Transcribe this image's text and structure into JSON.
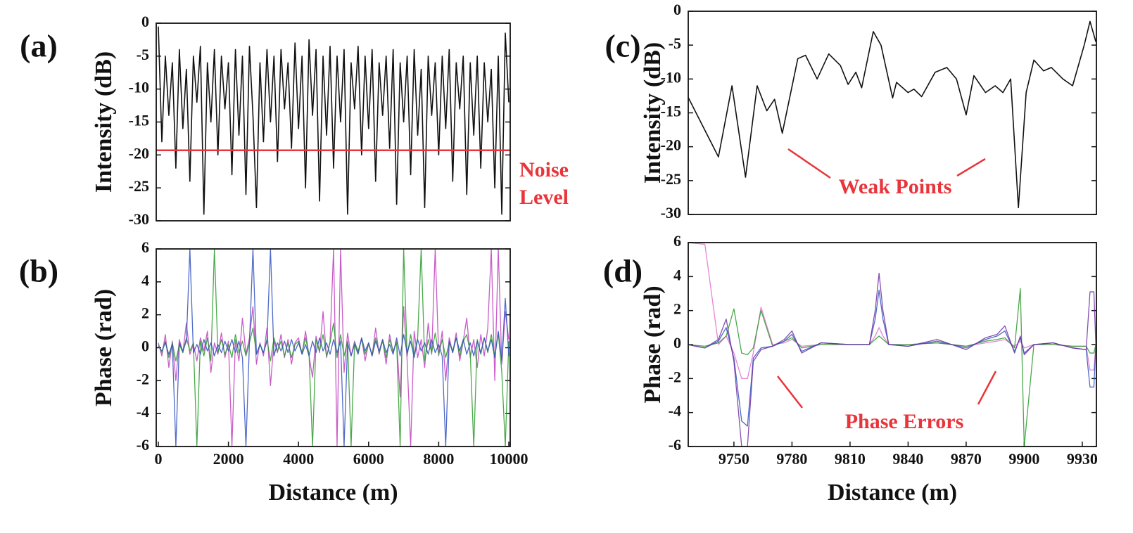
{
  "chart_data": [
    {
      "type": "line",
      "label": "(a)",
      "y_title": "Intensity (dB)",
      "x": [
        0,
        100,
        200,
        300,
        400,
        500,
        600,
        700,
        800,
        900,
        1000,
        1100,
        1200,
        1300,
        1400,
        1500,
        1600,
        1700,
        1800,
        1900,
        2000,
        2100,
        2200,
        2300,
        2400,
        2500,
        2600,
        2700,
        2800,
        2900,
        3000,
        3100,
        3200,
        3300,
        3400,
        3500,
        3600,
        3700,
        3800,
        3900,
        4000,
        4100,
        4200,
        4300,
        4400,
        4500,
        4600,
        4700,
        4800,
        4900,
        5000,
        5100,
        5200,
        5300,
        5400,
        5500,
        5600,
        5700,
        5800,
        5900,
        6000,
        6100,
        6200,
        6300,
        6400,
        6500,
        6600,
        6700,
        6800,
        6900,
        7000,
        7100,
        7200,
        7300,
        7400,
        7500,
        7600,
        7700,
        7800,
        7900,
        8000,
        8100,
        8200,
        8300,
        8400,
        8500,
        8600,
        8700,
        8800,
        8900,
        9000,
        9100,
        9200,
        9300,
        9400,
        9500,
        9600,
        9700,
        9800,
        9900,
        10000
      ],
      "values": [
        -0.5,
        -18,
        -5,
        -14,
        -6,
        -22,
        -4,
        -16,
        -7,
        -24,
        -5,
        -12,
        -3.5,
        -29,
        -6,
        -15,
        -4,
        -20,
        -5,
        -13,
        -6,
        -23,
        -4,
        -17,
        -5,
        -26,
        -3.5,
        -14,
        -28,
        -6,
        -18,
        -4,
        -15,
        -5,
        -21,
        -4,
        -13,
        -6,
        -19,
        -3,
        -16,
        -5,
        -25,
        -2.5,
        -14,
        -4,
        -27,
        -5,
        -17,
        -3.5,
        -22,
        -5,
        -15,
        -4,
        -29,
        -6,
        -13,
        -3.5,
        -20,
        -5,
        -16,
        -4,
        -24,
        -6,
        -14,
        -5,
        -19,
        -4,
        -27.5,
        -6,
        -15,
        -5,
        -23,
        -4,
        -17,
        -7,
        -28,
        -5,
        -14,
        -6,
        -20,
        -5,
        -16,
        -4,
        -24,
        -6,
        -13,
        -5,
        -26,
        -6,
        -17,
        -5,
        -22,
        -6,
        -15,
        -7,
        -25,
        -5,
        -29,
        -1.5,
        -12
      ],
      "color": "#111111",
      "xlim": [
        -60,
        10040
      ],
      "ylim": [
        -30,
        0
      ],
      "yticks": [
        0,
        -5,
        -10,
        -15,
        -20,
        -25,
        -30
      ],
      "noise_level": -19.3,
      "noise_color": "#e8343a",
      "annotation": [
        "Noise",
        "Level"
      ]
    },
    {
      "type": "line",
      "label": "(b)",
      "y_title": "Phase (rad)",
      "x_title": "Distance (m)",
      "x": [
        0,
        100,
        200,
        300,
        400,
        500,
        600,
        700,
        800,
        900,
        1000,
        1100,
        1200,
        1300,
        1400,
        1500,
        1600,
        1700,
        1800,
        1900,
        2000,
        2100,
        2200,
        2300,
        2400,
        2500,
        2600,
        2700,
        2800,
        2900,
        3000,
        3100,
        3200,
        3300,
        3400,
        3500,
        3600,
        3700,
        3800,
        3900,
        4000,
        4100,
        4200,
        4300,
        4400,
        4500,
        4600,
        4700,
        4800,
        4900,
        5000,
        5100,
        5200,
        5300,
        5400,
        5500,
        5600,
        5700,
        5800,
        5900,
        6000,
        6100,
        6200,
        6300,
        6400,
        6500,
        6600,
        6700,
        6800,
        6900,
        7000,
        7100,
        7200,
        7300,
        7400,
        7500,
        7600,
        7700,
        7800,
        7900,
        8000,
        8100,
        8200,
        8300,
        8400,
        8500,
        8600,
        8700,
        8800,
        8900,
        9000,
        9100,
        9200,
        9300,
        9400,
        9500,
        9600,
        9700,
        9800,
        9900,
        10000
      ],
      "series": [
        {
          "color": "#c040c0",
          "values": [
            0.3,
            -0.5,
            0.8,
            -1.2,
            0.4,
            -2,
            0.5,
            -0.3,
            1.5,
            -0.4,
            0.2,
            -0.8,
            0.6,
            -0.2,
            1,
            -1.5,
            0.3,
            -0.4,
            0.9,
            -0.6,
            0.4,
            -6,
            0.5,
            -0.8,
            1.8,
            -0.4,
            0.6,
            2.5,
            -1,
            0.3,
            -0.5,
            1.2,
            -2.3,
            0.4,
            -0.3,
            0.8,
            -0.6,
            0.5,
            -1,
            0.3,
            0.6,
            -0.4,
            1,
            -0.5,
            -1.8,
            0.7,
            -0.3,
            2.2,
            -0.6,
            0.4,
            6,
            -6,
            6,
            -1.5,
            0.9,
            -0.5,
            0.4,
            -0.3,
            0.6,
            -0.8,
            0.3,
            -0.5,
            1.2,
            -0.4,
            0.5,
            -1,
            0.8,
            -0.3,
            0.4,
            -3,
            2.5,
            -0.8,
            -6,
            1,
            -0.6,
            0.5,
            -1.2,
            1.5,
            -0.4,
            6,
            -0.5,
            1,
            -2,
            0.6,
            -0.3,
            0.9,
            -0.8,
            0.4,
            1.8,
            -0.6,
            0.5,
            -1.2,
            0.8,
            -0.5,
            1.2,
            6,
            -2,
            6,
            -1,
            2.2,
            0.5
          ]
        },
        {
          "color": "#2a9a2a",
          "values": [
            0.2,
            -0.3,
            0.4,
            -0.6,
            0.3,
            -0.8,
            0.2,
            -0.3,
            0.6,
            -0.2,
            0.3,
            -6,
            0.4,
            -0.5,
            0.6,
            -0.8,
            6,
            -0.3,
            0.5,
            -0.4,
            0.2,
            -0.6,
            0.8,
            -0.3,
            0.4,
            -0.5,
            0.3,
            1.2,
            -0.4,
            0.2,
            -0.3,
            0.5,
            -0.8,
            0.6,
            -0.2,
            0.4,
            -0.5,
            0.3,
            -0.6,
            0.2,
            0.4,
            -0.3,
            0.6,
            -0.4,
            -6,
            0.5,
            -0.2,
            0.8,
            -0.5,
            0.3,
            1.5,
            -0.6,
            0.8,
            -0.5,
            0.4,
            -6,
            0.3,
            -0.2,
            0.5,
            -0.4,
            0.2,
            -0.4,
            0.6,
            -0.3,
            0.4,
            -0.6,
            0.5,
            -0.2,
            0.3,
            -6,
            6,
            -0.5,
            0.8,
            -0.4,
            0.6,
            6,
            -0.8,
            0.5,
            -0.3,
            0.9,
            -0.4,
            0.5,
            -0.6,
            0.3,
            -0.2,
            0.6,
            -0.5,
            0.4,
            0.8,
            -0.3,
            -6,
            0.5,
            -0.4,
            0.6,
            -0.3,
            0.8,
            -0.5,
            0.9,
            -1.5,
            -6,
            0.4
          ]
        },
        {
          "color": "#3050c0",
          "values": [
            0.1,
            -0.2,
            0.3,
            -0.4,
            0.2,
            -6,
            0.3,
            -0.2,
            0.4,
            6,
            -0.3,
            0.2,
            -0.4,
            0.5,
            -0.2,
            0.3,
            -0.5,
            0.2,
            -0.3,
            0.4,
            -0.2,
            0.5,
            -0.3,
            0.4,
            -0.6,
            -6,
            0.3,
            6,
            -0.4,
            0.2,
            -0.3,
            0.4,
            6,
            -0.5,
            0.3,
            -0.2,
            0.4,
            -0.3,
            0.5,
            -0.2,
            0.3,
            -0.4,
            0.2,
            -0.5,
            0.4,
            -0.3,
            0.6,
            -0.2,
            0.3,
            -0.4,
            0.5,
            -0.3,
            0.4,
            -6,
            0.3,
            -0.5,
            0.2,
            -0.4,
            0.6,
            -0.2,
            0.3,
            -0.5,
            0.4,
            -0.2,
            0.5,
            -0.3,
            0.2,
            -0.4,
            0.6,
            -0.5,
            0.8,
            -0.3,
            0.4,
            -0.6,
            0.5,
            -0.2,
            0.3,
            -0.4,
            0.5,
            -0.3,
            0.2,
            -0.5,
            -6,
            0.4,
            -0.3,
            0.6,
            -0.2,
            0.5,
            -0.4,
            0.3,
            -0.5,
            0.4,
            -0.3,
            0.6,
            -0.2,
            0.5,
            -0.6,
            1,
            -0.8,
            3,
            -0.5
          ]
        }
      ],
      "xlim": [
        -60,
        10040
      ],
      "xticks": [
        0,
        2000,
        4000,
        6000,
        8000,
        10000
      ],
      "ylim": [
        -6,
        6
      ],
      "yticks": [
        6,
        4,
        2,
        0,
        -2,
        -4,
        -6
      ]
    },
    {
      "type": "line",
      "label": "(c)",
      "y_title": "Intensity (dB)",
      "x": [
        9726,
        9742,
        9749,
        9756,
        9762,
        9767,
        9771,
        9775,
        9783,
        9787,
        9793,
        9799,
        9805,
        9809,
        9813,
        9816,
        9822,
        9826,
        9832,
        9834,
        9840,
        9843,
        9847,
        9854,
        9860,
        9865,
        9870,
        9874,
        9880,
        9885,
        9889,
        9893,
        9897,
        9901,
        9905,
        9910,
        9914,
        9920,
        9925,
        9931,
        9934,
        9937
      ],
      "values": [
        -12.5,
        -21.5,
        -11,
        -24.5,
        -11,
        -14.7,
        -13,
        -18,
        -7,
        -6.5,
        -10,
        -6.3,
        -8,
        -10.8,
        -9,
        -11.3,
        -3,
        -5,
        -12.8,
        -10.5,
        -12,
        -11.5,
        -12.6,
        -9,
        -8.3,
        -10,
        -15.3,
        -9.5,
        -12,
        -11,
        -12,
        -10,
        -29,
        -12,
        -7.2,
        -8.8,
        -8.3,
        -10,
        -11,
        -5,
        -1.5,
        -4.5
      ],
      "color": "#111111",
      "xlim": [
        9726.4,
        9937.3
      ],
      "ylim": [
        -30,
        0
      ],
      "yticks": [
        0,
        -5,
        -10,
        -15,
        -20,
        -25,
        -30
      ],
      "annotation": "Weak Points"
    },
    {
      "type": "line",
      "label": "(d)",
      "y_title": "Phase (rad)",
      "x_title": "Distance (m)",
      "x": [
        9726,
        9735,
        9742,
        9746,
        9750,
        9754,
        9757,
        9760,
        9764,
        9770,
        9776,
        9780,
        9785,
        9795,
        9810,
        9820,
        9823,
        9825,
        9827,
        9830,
        9840,
        9855,
        9870,
        9880,
        9886,
        9890,
        9895,
        9898,
        9900,
        9905,
        9915,
        9925,
        9932,
        9934,
        9936,
        9937
      ],
      "series": [
        {
          "color": "#e070d0",
          "values": [
            6,
            5.9,
            0,
            0.5,
            -0.5,
            -2,
            -2,
            -0.5,
            2.2,
            0,
            0.1,
            0.3,
            -0.1,
            0,
            0,
            0,
            0.5,
            1,
            0.5,
            0,
            0,
            0.1,
            -0.1,
            0.1,
            0.2,
            0.3,
            -0.1,
            0.2,
            -0.2,
            0,
            0,
            -0.1,
            -0.1,
            -1.5,
            -1.5,
            0
          ]
        },
        {
          "color": "#2a9a2a",
          "values": [
            0,
            -0.1,
            0.1,
            0.5,
            2.1,
            -0.5,
            -0.6,
            -0.2,
            2,
            -0.1,
            0.2,
            0.4,
            -0.2,
            0,
            0,
            0,
            0.3,
            0.5,
            0.3,
            0,
            0,
            0.1,
            -0.1,
            0.2,
            0.3,
            0.4,
            -0.2,
            3.3,
            -6,
            0,
            0,
            -0.1,
            -0.1,
            -0.5,
            -0.5,
            0
          ]
        },
        {
          "color": "#3050c0",
          "values": [
            0,
            -0.2,
            0.2,
            1,
            -0.8,
            -4.5,
            -4.8,
            -0.8,
            -0.2,
            -0.1,
            0.2,
            0.6,
            -0.4,
            0.1,
            0,
            0,
            1.5,
            3.2,
            1.5,
            0,
            -0.1,
            0.2,
            -0.2,
            0.3,
            0.5,
            0.8,
            -0.4,
            0.4,
            -0.5,
            0,
            0.1,
            -0.2,
            -0.3,
            -2.5,
            -2.5,
            0
          ]
        },
        {
          "color": "#7030a0",
          "values": [
            0,
            -0.2,
            0.3,
            1.5,
            -1,
            -6,
            -6,
            -1,
            -0.3,
            -0.1,
            0.3,
            0.8,
            -0.5,
            0.1,
            0,
            0,
            2,
            4.2,
            2,
            0,
            -0.1,
            0.3,
            -0.3,
            0.4,
            0.6,
            1.1,
            -0.5,
            0.5,
            -0.6,
            0,
            0.1,
            -0.2,
            -0.3,
            3.1,
            3.1,
            0
          ]
        }
      ],
      "xlim": [
        9726.4,
        9937.3
      ],
      "xticks": [
        9750,
        9780,
        9810,
        9840,
        9870,
        9900,
        9930
      ],
      "ylim": [
        -6,
        6
      ],
      "yticks": [
        6,
        4,
        2,
        0,
        -2,
        -4,
        -6
      ],
      "annotation": "Phase Errors"
    }
  ]
}
